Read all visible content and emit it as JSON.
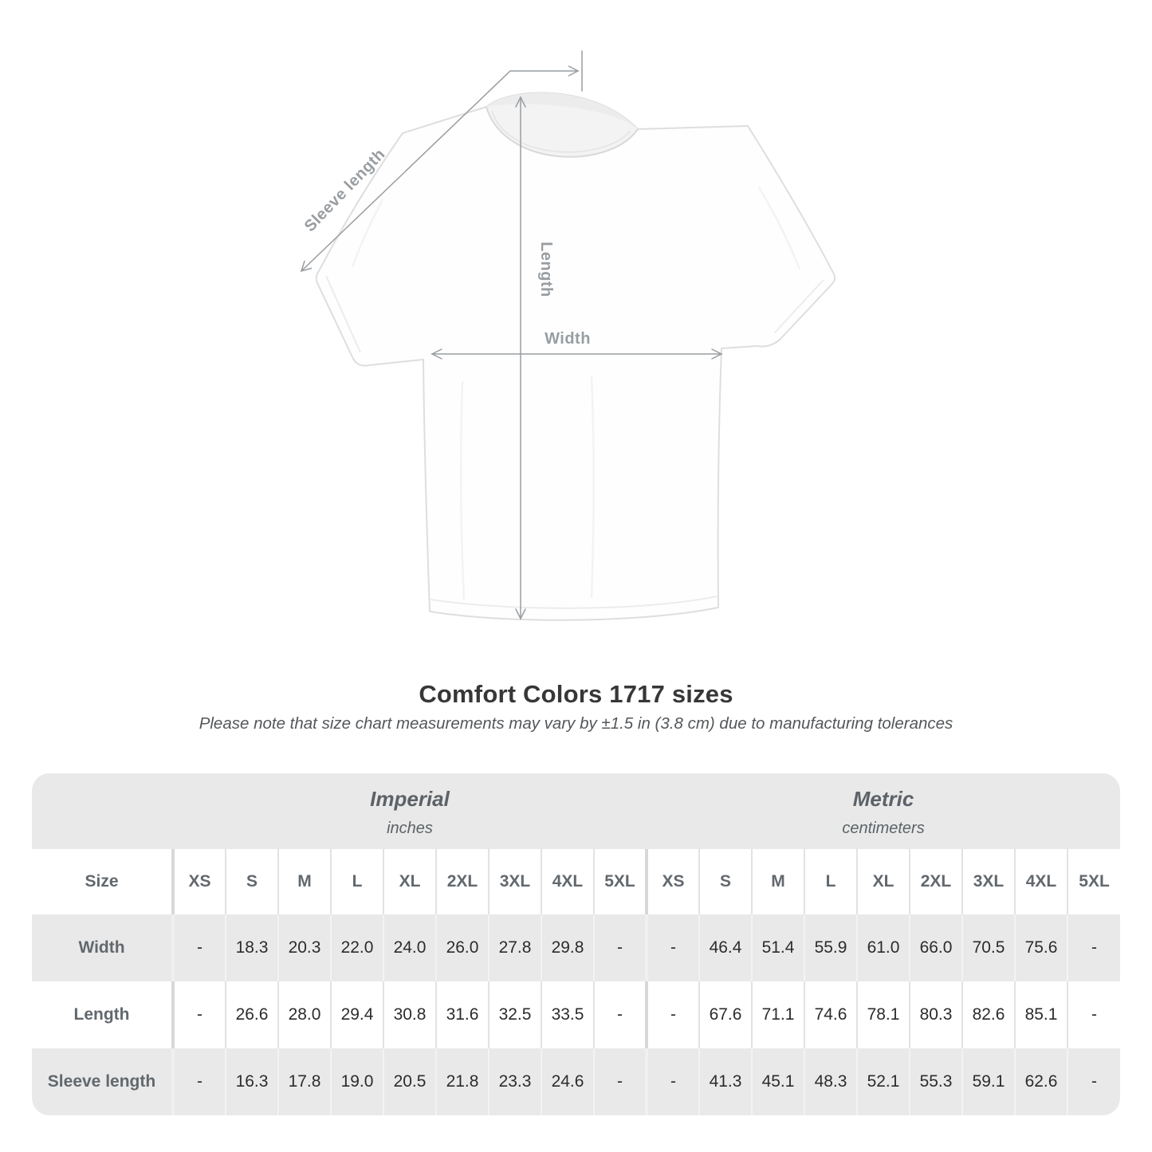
{
  "page": {
    "title": "Comfort Colors 1717 sizes",
    "subtitle": "Please note that size chart measurements may vary by ±1.5 in (3.8 cm) due to manufacturing tolerances"
  },
  "diagram": {
    "garment": "white t-shirt front view",
    "labels": {
      "sleeve_length": "Sleeve length",
      "length": "Length",
      "width": "Width"
    },
    "annotation_color": "#989da1"
  },
  "chart_data": {
    "type": "table",
    "title": "Comfort Colors 1717 sizes",
    "note": "Please note that size chart measurements may vary by ±1.5 in (3.8 cm) due to manufacturing tolerances",
    "size_header_label": "Size",
    "unit_groups": [
      {
        "label": "Imperial",
        "unit": "inches"
      },
      {
        "label": "Metric",
        "unit": "centimeters"
      }
    ],
    "sizes": [
      "XS",
      "S",
      "M",
      "L",
      "XL",
      "2XL",
      "3XL",
      "4XL",
      "5XL"
    ],
    "rows": [
      {
        "label": "Width",
        "imperial": [
          "-",
          "18.3",
          "20.3",
          "22.0",
          "24.0",
          "26.0",
          "27.8",
          "29.8",
          "-"
        ],
        "metric": [
          "-",
          "46.4",
          "51.4",
          "55.9",
          "61.0",
          "66.0",
          "70.5",
          "75.6",
          "-"
        ]
      },
      {
        "label": "Length",
        "imperial": [
          "-",
          "26.6",
          "28.0",
          "29.4",
          "30.8",
          "31.6",
          "32.5",
          "33.5",
          "-"
        ],
        "metric": [
          "-",
          "67.6",
          "71.1",
          "74.6",
          "78.1",
          "80.3",
          "82.6",
          "85.1",
          "-"
        ]
      },
      {
        "label": "Sleeve length",
        "imperial": [
          "-",
          "16.3",
          "17.8",
          "19.0",
          "20.5",
          "21.8",
          "23.3",
          "24.6",
          "-"
        ],
        "metric": [
          "-",
          "41.3",
          "45.1",
          "48.3",
          "52.1",
          "55.3",
          "59.1",
          "62.6",
          "-"
        ]
      }
    ],
    "colors": {
      "band_gray": "#e9e9e9",
      "alt_row_gray": "#e9e9e9",
      "header_text": "#62686d",
      "value_text": "#2c2c2c"
    }
  }
}
